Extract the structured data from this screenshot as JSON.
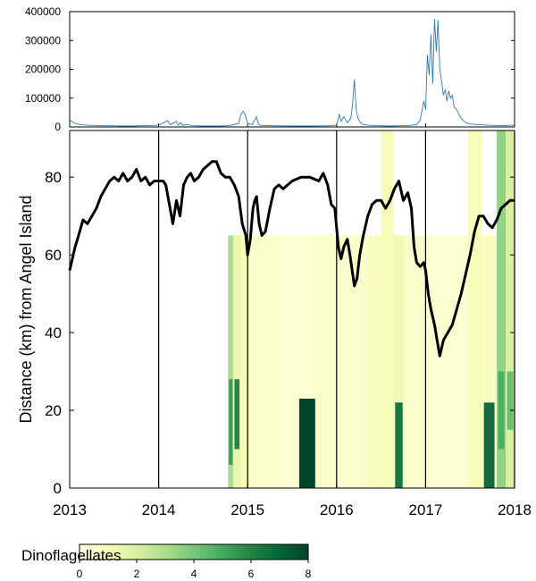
{
  "chart_data": [
    {
      "type": "line",
      "panel": "flow",
      "title": "",
      "xlabel": "",
      "ylabel": "",
      "xlim": [
        2013,
        2018
      ],
      "ylim": [
        0,
        400000
      ],
      "y_ticks": [
        0,
        100000,
        200000,
        300000,
        400000
      ],
      "y_tick_labels": [
        "0",
        "100000",
        "200000",
        "300000",
        "400000"
      ],
      "colors": {
        "line": "#2b7bba"
      },
      "series": [
        {
          "name": "flow",
          "x": [
            2013.0,
            2013.02,
            2013.06,
            2013.12,
            2013.2,
            2013.3,
            2013.4,
            2013.5,
            2013.6,
            2013.7,
            2013.8,
            2013.9,
            2014.0,
            2014.06,
            2014.1,
            2014.13,
            2014.16,
            2014.2,
            2014.22,
            2014.25,
            2014.27,
            2014.3,
            2014.4,
            2014.5,
            2014.6,
            2014.7,
            2014.8,
            2014.9,
            2014.92,
            2014.95,
            2014.97,
            2015.0,
            2015.05,
            2015.1,
            2015.12,
            2015.14,
            2015.18,
            2015.3,
            2015.5,
            2015.7,
            2015.9,
            2016.0,
            2016.03,
            2016.05,
            2016.08,
            2016.12,
            2016.16,
            2016.18,
            2016.2,
            2016.22,
            2016.24,
            2016.27,
            2016.3,
            2016.4,
            2016.5,
            2016.6,
            2016.7,
            2016.8,
            2016.9,
            2016.94,
            2016.98,
            2017.0,
            2017.02,
            2017.04,
            2017.06,
            2017.08,
            2017.1,
            2017.12,
            2017.14,
            2017.16,
            2017.18,
            2017.2,
            2017.22,
            2017.24,
            2017.26,
            2017.28,
            2017.3,
            2017.32,
            2017.35,
            2017.38,
            2017.4,
            2017.45,
            2017.5,
            2017.6,
            2017.7,
            2017.8,
            2017.9,
            2018.0
          ],
          "values": [
            25000,
            20000,
            12000,
            8000,
            6000,
            5000,
            4000,
            4000,
            3000,
            3000,
            4000,
            5000,
            6000,
            15000,
            22000,
            8000,
            12000,
            20000,
            6000,
            15000,
            5000,
            8000,
            4000,
            3000,
            3000,
            3000,
            5000,
            12000,
            40000,
            55000,
            45000,
            12000,
            8000,
            35000,
            10000,
            6000,
            5000,
            4000,
            3000,
            3000,
            4000,
            6000,
            45000,
            20000,
            35000,
            15000,
            30000,
            80000,
            165000,
            60000,
            30000,
            15000,
            8000,
            5000,
            4000,
            3000,
            4000,
            5000,
            8000,
            25000,
            90000,
            60000,
            250000,
            180000,
            320000,
            150000,
            375000,
            260000,
            370000,
            200000,
            160000,
            110000,
            130000,
            90000,
            125000,
            100000,
            110000,
            70000,
            60000,
            40000,
            30000,
            15000,
            10000,
            8000,
            6000,
            5000,
            5000,
            6000
          ]
        }
      ]
    },
    {
      "type": "heatmap",
      "panel": "distance",
      "title": "",
      "xlabel": "",
      "ylabel": "Distance (km) from Angel Island",
      "xlim": [
        2013,
        2018
      ],
      "ylim": [
        0,
        92
      ],
      "x_ticks": [
        2013,
        2014,
        2015,
        2016,
        2017,
        2018
      ],
      "x_tick_labels": [
        "2013",
        "2014",
        "2015",
        "2016",
        "2017",
        "2018"
      ],
      "y_ticks": [
        0,
        20,
        40,
        60,
        80
      ],
      "y_tick_labels": [
        "0",
        "20",
        "40",
        "60",
        "80"
      ],
      "vertical_lines_x": [
        2014,
        2015,
        2016,
        2017,
        2018
      ],
      "colorbar": {
        "label": "Dinoflagellates",
        "range": [
          0,
          8
        ],
        "ticks": [
          0,
          2,
          4,
          6,
          8
        ],
        "tick_labels": [
          "0",
          "2",
          "4",
          "6",
          "8"
        ],
        "colors": [
          "#ffffe5",
          "#f7fcb9",
          "#d9f0a3",
          "#addd8e",
          "#78c679",
          "#41ab5d",
          "#238443",
          "#006837",
          "#004529"
        ]
      },
      "heatmap_cells": [
        {
          "x0": 2014.78,
          "x1": 2014.84,
          "y0": 0,
          "y1": 65,
          "value": 3.0,
          "hot_y": [
            6,
            28
          ],
          "hot_value": 5.5
        },
        {
          "x0": 2014.84,
          "x1": 2014.92,
          "y0": 0,
          "y1": 65,
          "value": 1.5,
          "hot_y": [
            10,
            28
          ],
          "hot_value": 6.5
        },
        {
          "x0": 2014.92,
          "x1": 2015.02,
          "y0": 0,
          "y1": 65,
          "value": 1.0
        },
        {
          "x0": 2015.02,
          "x1": 2015.35,
          "y0": 0,
          "y1": 65,
          "value": 0.6
        },
        {
          "x0": 2015.35,
          "x1": 2015.58,
          "y0": 0,
          "y1": 65,
          "value": 0.5
        },
        {
          "x0": 2015.58,
          "x1": 2015.76,
          "y0": 0,
          "y1": 23,
          "value": 8.0
        },
        {
          "x0": 2015.58,
          "x1": 2015.76,
          "y0": 23,
          "y1": 65,
          "value": 0.5
        },
        {
          "x0": 2015.76,
          "x1": 2015.98,
          "y0": 0,
          "y1": 65,
          "value": 0.7
        },
        {
          "x0": 2015.98,
          "x1": 2016.35,
          "y0": 0,
          "y1": 65,
          "value": 0.6
        },
        {
          "x0": 2016.35,
          "x1": 2016.5,
          "y0": 0,
          "y1": 65,
          "value": 0.9
        },
        {
          "x0": 2016.5,
          "x1": 2016.64,
          "y0": 0,
          "y1": 92,
          "value": 1.0
        },
        {
          "x0": 2016.64,
          "x1": 2016.76,
          "y0": 0,
          "y1": 65,
          "value": 1.2,
          "hot_y": [
            0,
            22
          ],
          "hot_value": 7.0
        },
        {
          "x0": 2016.76,
          "x1": 2017.0,
          "y0": 0,
          "y1": 65,
          "value": 0.6
        },
        {
          "x0": 2017.0,
          "x1": 2017.48,
          "y0": 0,
          "y1": 65,
          "value": 0.5
        },
        {
          "x0": 2017.48,
          "x1": 2017.63,
          "y0": 0,
          "y1": 92,
          "value": 1.0
        },
        {
          "x0": 2017.63,
          "x1": 2017.8,
          "y0": 0,
          "y1": 65,
          "value": 0.8,
          "hot_y": [
            0,
            22
          ],
          "hot_value": 7.5
        },
        {
          "x0": 2017.8,
          "x1": 2017.9,
          "y0": 0,
          "y1": 92,
          "value": 3.5,
          "hot_y": [
            10,
            30
          ],
          "hot_value": 5.0
        },
        {
          "x0": 2017.9,
          "x1": 2018.0,
          "y0": 0,
          "y1": 92,
          "value": 2.0,
          "hot_y": [
            15,
            30
          ],
          "hot_value": 4.5
        }
      ],
      "series": [
        {
          "name": "distance",
          "x": [
            2013.0,
            2013.02,
            2013.06,
            2013.1,
            2013.15,
            2013.2,
            2013.25,
            2013.3,
            2013.35,
            2013.4,
            2013.45,
            2013.5,
            2013.55,
            2013.6,
            2013.65,
            2013.7,
            2013.75,
            2013.8,
            2013.85,
            2013.9,
            2013.95,
            2014.0,
            2014.05,
            2014.08,
            2014.12,
            2014.16,
            2014.2,
            2014.24,
            2014.28,
            2014.32,
            2014.36,
            2014.4,
            2014.45,
            2014.5,
            2014.55,
            2014.6,
            2014.65,
            2014.7,
            2014.75,
            2014.8,
            2014.85,
            2014.9,
            2014.94,
            2014.98,
            2015.0,
            2015.03,
            2015.06,
            2015.08,
            2015.1,
            2015.13,
            2015.16,
            2015.2,
            2015.25,
            2015.3,
            2015.35,
            2015.4,
            2015.5,
            2015.6,
            2015.7,
            2015.8,
            2015.85,
            2015.9,
            2015.94,
            2015.98,
            2016.02,
            2016.05,
            2016.08,
            2016.12,
            2016.15,
            2016.2,
            2016.23,
            2016.26,
            2016.3,
            2016.35,
            2016.4,
            2016.45,
            2016.5,
            2016.55,
            2016.6,
            2016.65,
            2016.7,
            2016.75,
            2016.8,
            2016.84,
            2016.87,
            2016.9,
            2016.94,
            2016.98,
            2017.0,
            2017.03,
            2017.06,
            2017.1,
            2017.13,
            2017.16,
            2017.2,
            2017.25,
            2017.3,
            2017.35,
            2017.4,
            2017.45,
            2017.5,
            2017.55,
            2017.6,
            2017.65,
            2017.7,
            2017.75,
            2017.8,
            2017.85,
            2017.9,
            2017.95,
            2018.0
          ],
          "values": [
            56,
            58,
            62,
            65,
            69,
            68,
            70,
            72,
            75,
            77,
            79,
            80,
            79,
            81,
            79,
            80,
            82,
            79,
            80,
            78,
            79,
            79,
            79,
            78,
            73,
            68,
            74,
            70,
            78,
            80,
            81,
            79,
            80,
            82,
            83,
            84,
            84,
            81,
            80,
            80,
            78,
            75,
            68,
            65,
            60,
            64,
            72,
            74,
            75,
            68,
            65,
            66,
            72,
            77,
            78,
            77,
            79,
            80,
            80,
            79,
            81,
            78,
            73,
            72,
            62,
            59,
            62,
            64,
            60,
            52,
            54,
            60,
            65,
            70,
            73,
            74,
            74,
            72,
            74,
            77,
            79,
            74,
            76,
            72,
            62,
            58,
            57,
            58,
            56,
            50,
            46,
            42,
            38,
            34,
            38,
            40,
            42,
            46,
            50,
            55,
            60,
            66,
            70,
            70,
            68,
            67,
            69,
            72,
            73,
            74,
            74
          ]
        }
      ]
    }
  ]
}
